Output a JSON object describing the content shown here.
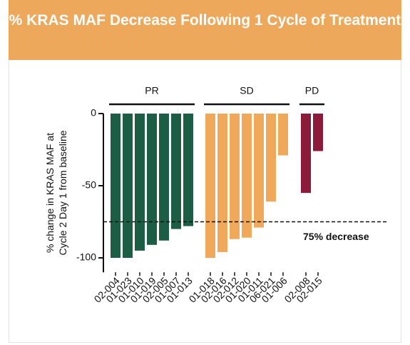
{
  "chart_data": {
    "type": "bar",
    "title": "% KRAS MAF Decrease Following 1 Cycle of Treatment",
    "y_label": "% change in KRAS MAF at Cycle 2 Day 1 from baseline",
    "ylim": [
      -110,
      0
    ],
    "yticks": [
      0,
      -50,
      -100
    ],
    "reference_line": {
      "value": -75,
      "label": "75% decrease"
    },
    "series": [
      {
        "name": "PR",
        "color": "#1b5e45",
        "categories": [
          "02-004",
          "01-023",
          "01-010",
          "01-019",
          "02-005",
          "01-007",
          "01-013"
        ],
        "values": [
          -100,
          -100,
          -95,
          -91,
          -88,
          -80,
          -78
        ]
      },
      {
        "name": "SD",
        "color": "#f0a95b",
        "categories": [
          "01-018",
          "02-016",
          "02-012",
          "01-020",
          "01-011",
          "06-021",
          "01-006"
        ],
        "values": [
          -100,
          -96,
          -87,
          -86,
          -79,
          -61,
          -29
        ]
      },
      {
        "name": "PD",
        "color": "#8c1a3b",
        "categories": [
          "02-008",
          "02-015"
        ],
        "values": [
          -55,
          -26
        ]
      }
    ]
  }
}
